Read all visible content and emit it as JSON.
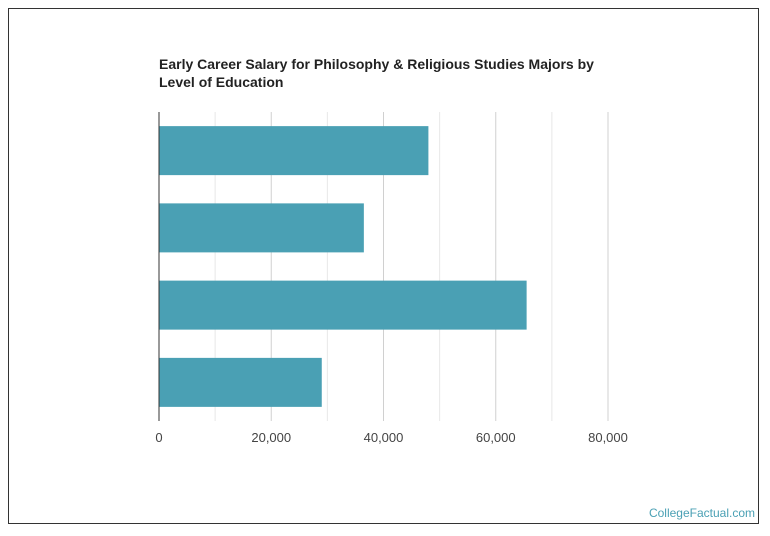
{
  "chart_data": {
    "type": "bar",
    "orientation": "horizontal",
    "title": "Early Career Salary for Philosophy & Religious Studies Majors by Level of Education",
    "categories": [
      "",
      "",
      "",
      ""
    ],
    "values": [
      48000,
      36500,
      65500,
      29000
    ],
    "xlim": [
      0,
      80000
    ],
    "xticks": [
      0,
      20000,
      40000,
      60000,
      80000
    ],
    "xtick_labels": [
      "0",
      "20,000",
      "40,000",
      "60,000",
      "80,000"
    ],
    "xlabel": "",
    "ylabel": "",
    "grid": true,
    "bar_color": "#4aa0b4"
  },
  "credit": "CollegeFactual.com"
}
